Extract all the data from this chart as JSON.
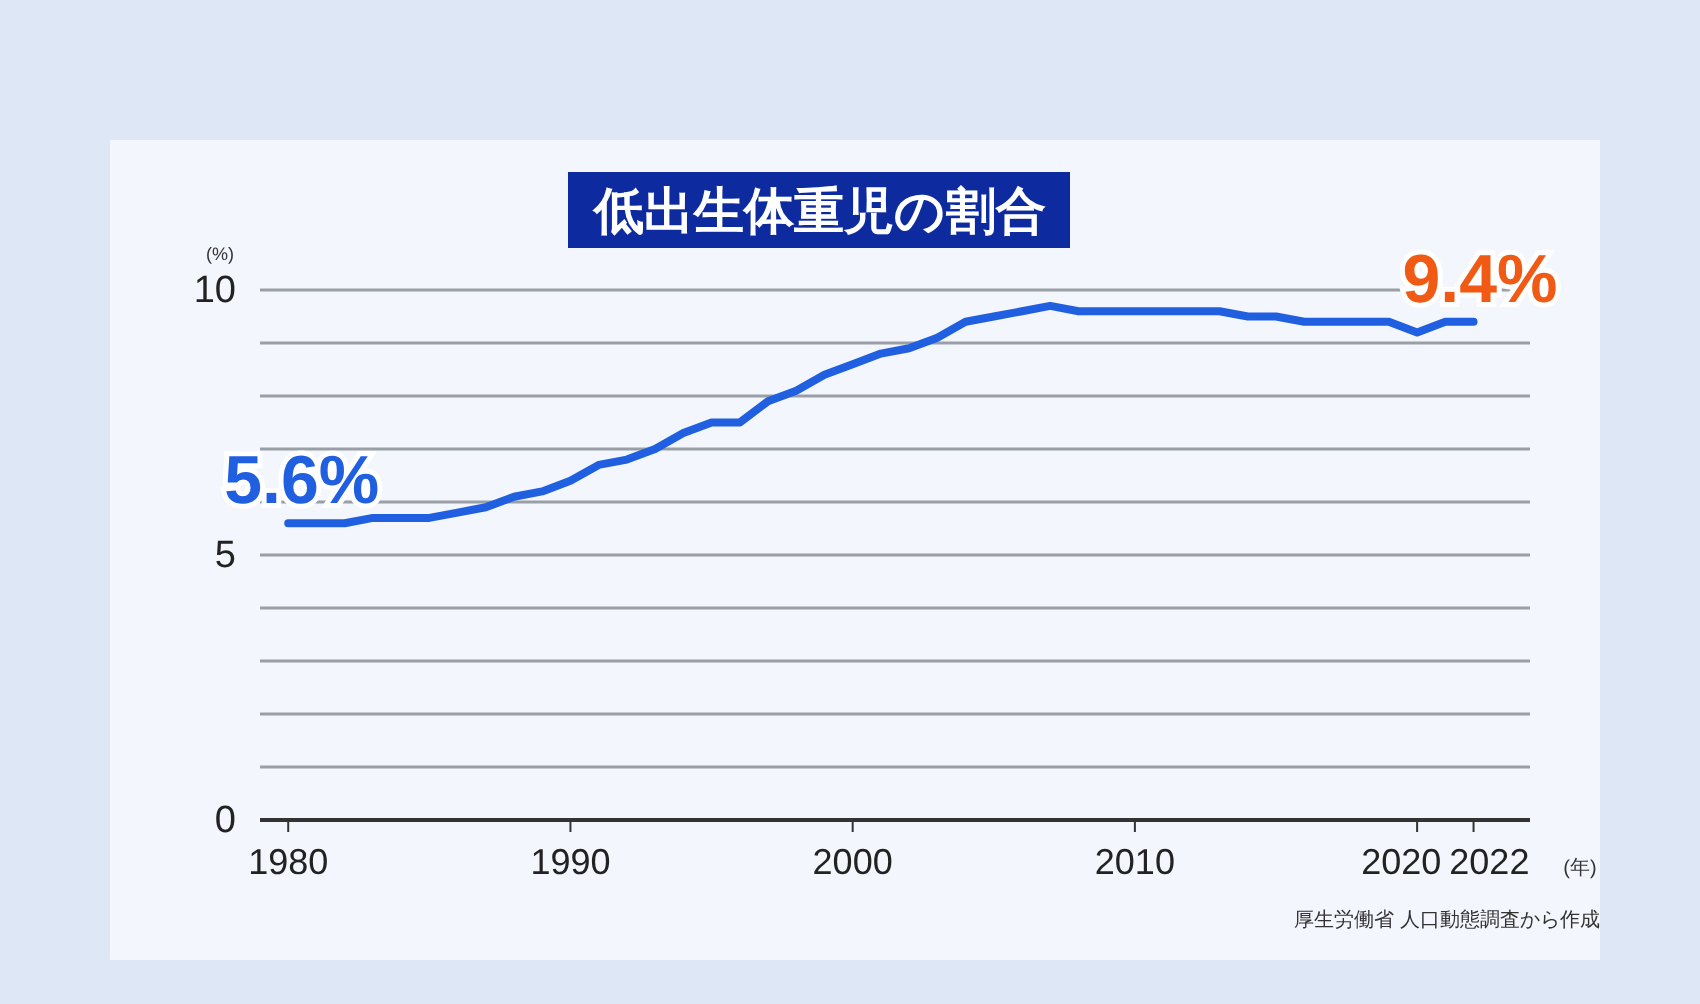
{
  "chart_data": {
    "type": "line",
    "title": "低出生体重児の割合",
    "ylabel": "(%)",
    "xlabel": "(年)",
    "x": [
      1980,
      1981,
      1982,
      1983,
      1984,
      1985,
      1986,
      1987,
      1988,
      1989,
      1990,
      1991,
      1992,
      1993,
      1994,
      1995,
      1996,
      1997,
      1998,
      1999,
      2000,
      2001,
      2002,
      2003,
      2004,
      2005,
      2006,
      2007,
      2008,
      2009,
      2010,
      2011,
      2012,
      2013,
      2014,
      2015,
      2016,
      2017,
      2018,
      2019,
      2020,
      2021,
      2022
    ],
    "series": [
      {
        "color": "#1f5fe0",
        "values": [
          5.6,
          5.6,
          5.6,
          5.7,
          5.7,
          5.7,
          5.8,
          5.9,
          6.1,
          6.2,
          6.4,
          6.7,
          6.8,
          7.0,
          7.3,
          7.5,
          7.5,
          7.9,
          8.1,
          8.4,
          8.6,
          8.8,
          8.9,
          9.1,
          9.4,
          9.5,
          9.6,
          9.7,
          9.6,
          9.6,
          9.6,
          9.6,
          9.6,
          9.6,
          9.5,
          9.5,
          9.4,
          9.4,
          9.4,
          9.4,
          9.2,
          9.4,
          9.4
        ]
      }
    ],
    "xlim": [
      1979,
      2024
    ],
    "xticks": [
      1980,
      1990,
      2000,
      2010,
      2020,
      2022
    ],
    "ylim": [
      0,
      10
    ],
    "yticks": [
      0,
      {
        "value": 1,
        "label": null
      },
      {
        "value": 2,
        "label": null
      },
      {
        "value": 3,
        "label": null
      },
      {
        "value": 4,
        "label": null
      },
      5,
      {
        "value": 6,
        "label": null
      },
      {
        "value": 7,
        "label": null
      },
      {
        "value": 8,
        "label": null
      },
      {
        "value": 9,
        "label": null
      },
      10
    ],
    "grid": "y",
    "marker": "none",
    "line_style": "solid",
    "annotations": [
      {
        "text": "5.6%",
        "x": 1980,
        "y": 5.6
      },
      {
        "text": "9.4%",
        "x": 2022,
        "y": 9.4
      },
      "厚生労働省 人口動態調査から作成"
    ]
  }
}
